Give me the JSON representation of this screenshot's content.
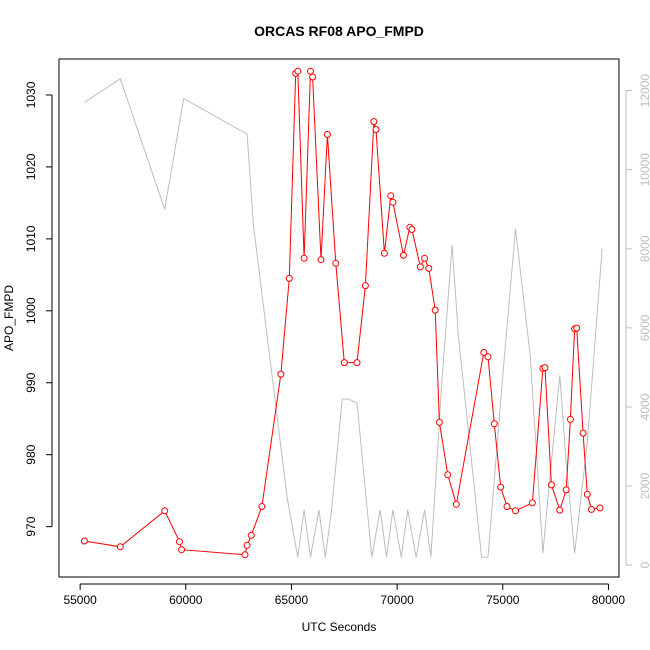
{
  "chart_data": {
    "type": "line",
    "title": "ORCAS RF08 APO_FMPD",
    "xlabel": "UTC Seconds",
    "ylabel": "APO_FMPD",
    "xlim": [
      54000,
      80500
    ],
    "ylim": [
      963,
      1035
    ],
    "y2lim": [
      -300,
      12800
    ],
    "x_ticks": [
      55000,
      60000,
      65000,
      70000,
      75000,
      80000
    ],
    "y_ticks": [
      970,
      980,
      990,
      1000,
      1010,
      1020,
      1030
    ],
    "y2_ticks": [
      0,
      2000,
      4000,
      6000,
      8000,
      10000,
      12000
    ],
    "grid": false,
    "series": [
      {
        "color": "#ff0000",
        "axis": "left",
        "marker": "open-circle",
        "x": [
          55200,
          56900,
          59000,
          59700,
          59800,
          62800,
          62900,
          63100,
          63600,
          64500,
          64900,
          65200,
          65300,
          65600,
          65900,
          66000,
          66400,
          66700,
          67100,
          67500,
          68100,
          68500,
          68900,
          69000,
          69400,
          69700,
          69800,
          70300,
          70600,
          70700,
          71100,
          71300,
          71500,
          71800,
          72000,
          72400,
          72800,
          74100,
          74300,
          74600,
          74900,
          75200,
          75600,
          76400,
          76900,
          77000,
          77300,
          77700,
          78000,
          78200,
          78400,
          78500,
          78800,
          79000,
          79200,
          79600
        ],
        "y": [
          968.0,
          967.2,
          972.2,
          967.9,
          966.8,
          966.1,
          967.4,
          968.8,
          972.8,
          991.2,
          1004.5,
          1033.0,
          1033.3,
          1007.3,
          1033.3,
          1032.5,
          1007.1,
          1024.5,
          1006.6,
          992.8,
          992.8,
          1003.5,
          1026.3,
          1025.2,
          1008.0,
          1016.0,
          1015.1,
          1007.7,
          1011.6,
          1011.3,
          1006.1,
          1007.3,
          1005.9,
          1000.1,
          984.5,
          977.2,
          973.1,
          994.2,
          993.6,
          984.3,
          975.5,
          972.8,
          972.2,
          973.3,
          992.0,
          992.1,
          975.8,
          972.3,
          975.1,
          984.9,
          997.5,
          997.6,
          983.0,
          974.5,
          972.4,
          972.6
        ]
      },
      {
        "color": "#bdbdbd",
        "axis": "right",
        "marker": "none",
        "x": [
          55200,
          56900,
          59000,
          59900,
          62900,
          63200,
          64800,
          65300,
          65600,
          65900,
          66300,
          66600,
          66900,
          67400,
          67700,
          68100,
          68800,
          69200,
          69500,
          69800,
          70200,
          70500,
          70900,
          71300,
          71600,
          72100,
          72600,
          72900,
          74000,
          74300,
          75000,
          75600,
          76300,
          76900,
          77100,
          77700,
          78000,
          78400,
          79000,
          79700
        ],
        "y": [
          11700,
          12300,
          9000,
          11800,
          10900,
          8600,
          1700,
          200,
          1400,
          200,
          1400,
          200,
          1400,
          4200,
          4200,
          4100,
          200,
          1400,
          200,
          1400,
          200,
          1400,
          200,
          1400,
          200,
          4500,
          8100,
          5800,
          200,
          200,
          4800,
          8500,
          5300,
          300,
          1500,
          4800,
          2600,
          300,
          3100,
          8000
        ]
      }
    ]
  }
}
